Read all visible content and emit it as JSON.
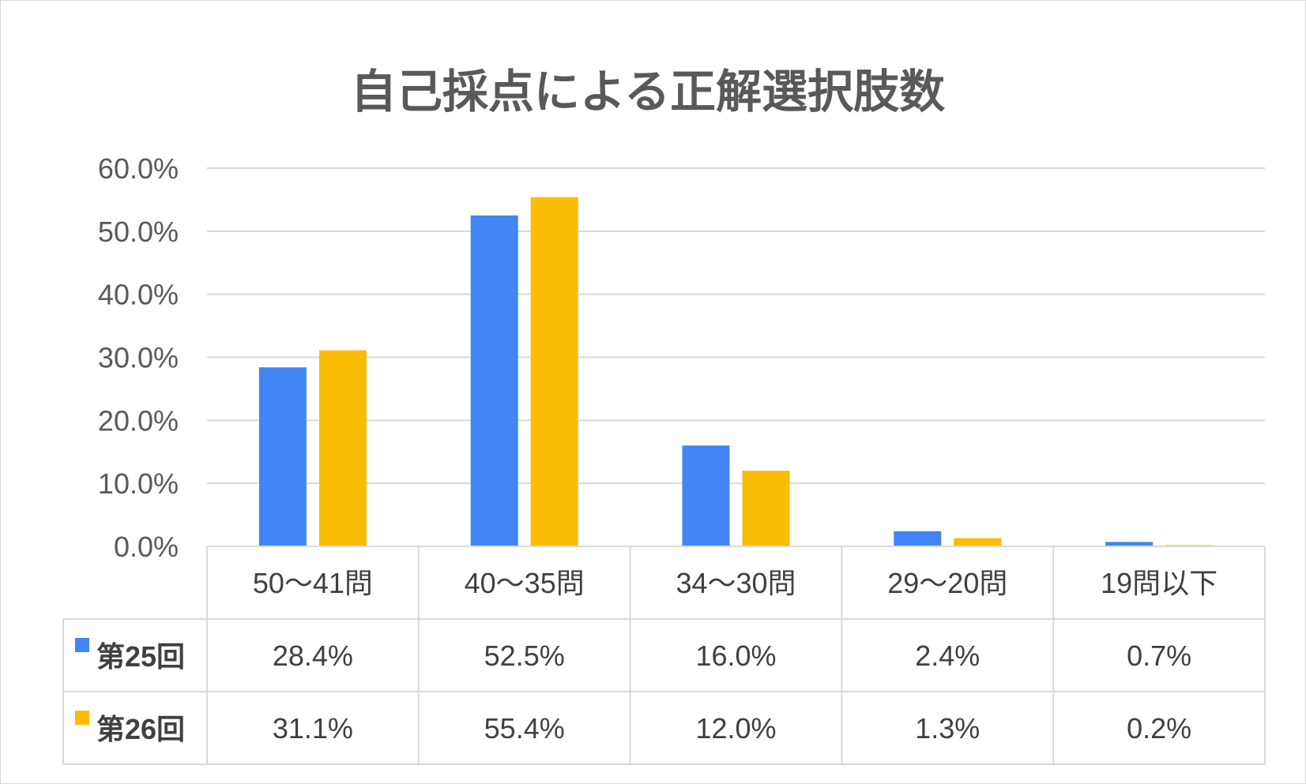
{
  "chart_data": {
    "type": "bar",
    "title": "自己採点による正解選択肢数",
    "categories": [
      "50〜41問",
      "40〜35問",
      "34〜30問",
      "29〜20問",
      "19問以下"
    ],
    "series": [
      {
        "name": "第25回",
        "color": "#4285F4",
        "values": [
          28.4,
          52.5,
          16.0,
          2.4,
          0.7
        ],
        "labels": [
          "28.4%",
          "52.5%",
          "16.0%",
          "2.4%",
          "0.7%"
        ]
      },
      {
        "name": "第26回",
        "color": "#FBBC04",
        "values": [
          31.1,
          55.4,
          12.0,
          1.3,
          0.2
        ],
        "labels": [
          "31.1%",
          "55.4%",
          "12.0%",
          "1.3%",
          "0.2%"
        ]
      }
    ],
    "ylim": [
      0,
      60
    ],
    "yticks": [
      "0.0%",
      "10.0%",
      "20.0%",
      "30.0%",
      "40.0%",
      "50.0%",
      "60.0%"
    ],
    "grid": true,
    "legend": "data-table"
  }
}
